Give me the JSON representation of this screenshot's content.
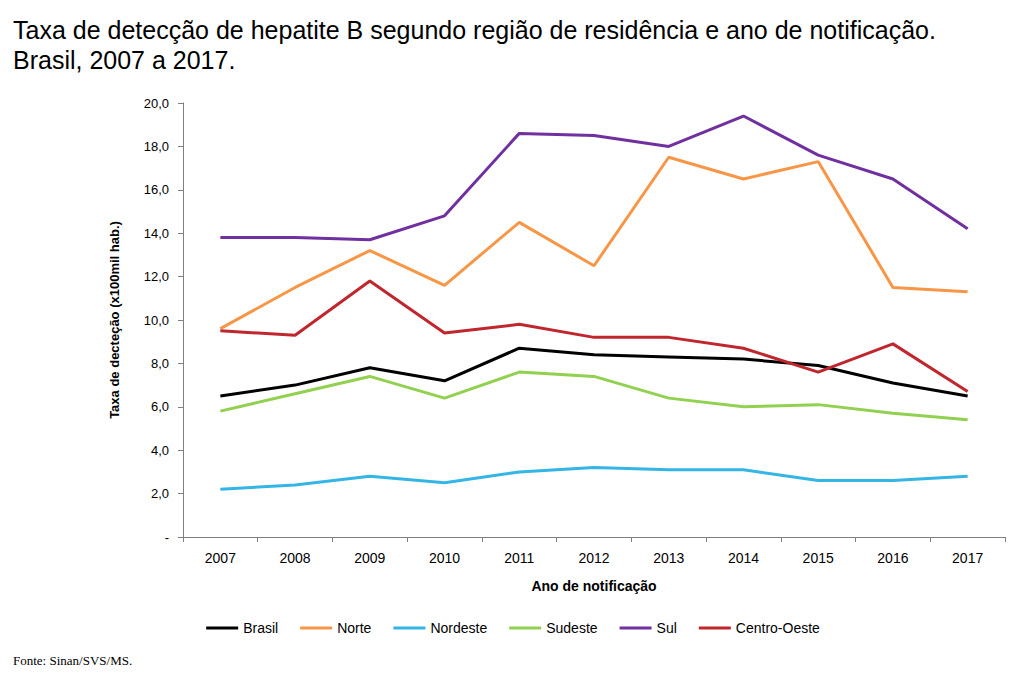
{
  "chart_data": {
    "type": "line",
    "title": "Taxa de detecção de hepatite B segundo região de residência e ano de notificação.\nBrasil, 2007 a 2017.",
    "x_label": "Ano de notificação",
    "y_label": "Taxa de decteção (x100mil hab.)",
    "source": "Fonte: Sinan/SVS/MS.",
    "categories": [
      "2007",
      "2008",
      "2009",
      "2010",
      "2011",
      "2012",
      "2013",
      "2014",
      "2015",
      "2016",
      "2017"
    ],
    "series": [
      {
        "name": "Brasil",
        "color": "#000000",
        "values": [
          6.5,
          7.0,
          7.8,
          7.2,
          8.7,
          8.4,
          8.3,
          8.2,
          7.9,
          7.1,
          6.5
        ]
      },
      {
        "name": "Norte",
        "color": "#f79646",
        "values": [
          9.6,
          11.5,
          13.2,
          11.6,
          14.5,
          12.5,
          17.5,
          16.5,
          17.3,
          11.5,
          11.3
        ]
      },
      {
        "name": "Nordeste",
        "color": "#33b5e5",
        "values": [
          2.2,
          2.4,
          2.8,
          2.5,
          3.0,
          3.2,
          3.1,
          3.1,
          2.6,
          2.6,
          2.8
        ]
      },
      {
        "name": "Sudeste",
        "color": "#92d050",
        "values": [
          5.8,
          6.6,
          7.4,
          6.4,
          7.6,
          7.4,
          6.4,
          6.0,
          6.1,
          5.7,
          5.4
        ]
      },
      {
        "name": "Sul",
        "color": "#7030a0",
        "values": [
          13.8,
          13.8,
          13.7,
          14.8,
          18.6,
          18.5,
          18.0,
          19.4,
          17.6,
          16.5,
          14.2
        ]
      },
      {
        "name": "Centro-Oeste",
        "color": "#c0262d",
        "values": [
          9.5,
          9.3,
          11.8,
          9.4,
          9.8,
          9.2,
          9.2,
          8.7,
          7.6,
          8.9,
          6.7
        ]
      }
    ],
    "ylim": [
      0,
      20
    ],
    "yticks": [
      {
        "value": 0,
        "label": "-"
      },
      {
        "value": 2,
        "label": "2,0"
      },
      {
        "value": 4,
        "label": "4,0"
      },
      {
        "value": 6,
        "label": "6,0"
      },
      {
        "value": 8,
        "label": "8,0"
      },
      {
        "value": 10,
        "label": "10,0"
      },
      {
        "value": 12,
        "label": "12,0"
      },
      {
        "value": 14,
        "label": "14,0"
      },
      {
        "value": 16,
        "label": "16,0"
      },
      {
        "value": 18,
        "label": "18,0"
      },
      {
        "value": 20,
        "label": "20,0"
      }
    ],
    "grid": false,
    "legend": "bottom"
  }
}
